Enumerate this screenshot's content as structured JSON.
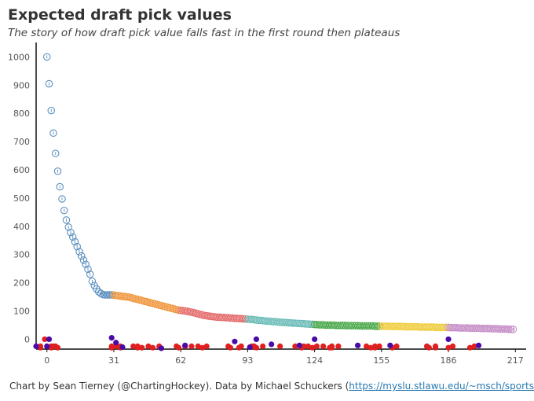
{
  "title": "Expected draft pick values",
  "subtitle": "The story of how draft pick value falls fast in the first round then plateaus",
  "caption": {
    "text": "Chart by Sean Tierney (@ChartingHockey). Data by Michael Schuckers (",
    "link": "https://myslu.stlawu.edu/~msch/sports/Sc.."
  },
  "colors": {
    "round1": "#5b8fbf",
    "round2": "#f0953a",
    "round3": "#e46a6a",
    "round4": "#6bbcb8",
    "round5": "#4aa84a",
    "round6": "#f0cc3c",
    "round7": "#c58ec7",
    "dot_red": "#e02020",
    "dot_purple": "#4a0aa8"
  },
  "chart_data": {
    "type": "scatter",
    "xlim": [
      -5,
      222
    ],
    "ylim": [
      -35,
      1040
    ],
    "x_ticks": [
      0,
      31,
      62,
      93,
      124,
      155,
      186,
      217
    ],
    "y_ticks": [
      0,
      100,
      200,
      300,
      400,
      500,
      600,
      700,
      800,
      900,
      1000
    ],
    "xlabel": "",
    "ylabel": "",
    "grid": false,
    "legend": "none",
    "series": [
      {
        "color_key": "round1",
        "x": [
          0,
          1,
          2,
          3,
          4,
          5,
          6,
          7,
          8,
          9,
          10,
          11,
          12,
          13,
          14,
          15,
          16,
          17,
          18,
          19,
          20,
          21,
          22,
          23,
          24,
          25,
          26,
          27,
          28,
          29,
          30
        ],
        "y": [
          1000,
          905,
          810,
          730,
          658,
          595,
          540,
          497,
          456,
          422,
          397,
          378,
          362,
          345,
          328,
          310,
          295,
          280,
          265,
          248,
          230,
          205,
          190,
          178,
          168,
          162,
          158,
          157,
          157,
          157,
          157
        ]
      },
      {
        "color_key": "round2",
        "x": [
          31,
          32,
          33,
          34,
          35,
          36,
          37,
          38,
          39,
          40,
          41,
          42,
          43,
          44,
          45,
          46,
          47,
          48,
          49,
          50,
          51,
          52,
          53,
          54,
          55,
          56,
          57,
          58,
          59,
          60,
          61
        ],
        "y": [
          156,
          155,
          154,
          153,
          152,
          151,
          150,
          149,
          147,
          145,
          143,
          141,
          139,
          137,
          135,
          133,
          131,
          129,
          127,
          125,
          123,
          121,
          119,
          117,
          115,
          113,
          111,
          109,
          107,
          105,
          103
        ]
      },
      {
        "color_key": "round3",
        "x": [
          62,
          63,
          64,
          65,
          66,
          67,
          68,
          69,
          70,
          71,
          72,
          73,
          74,
          75,
          76,
          77,
          78,
          79,
          80,
          81,
          82,
          83,
          84,
          85,
          86,
          87,
          88,
          89,
          90,
          91,
          92
        ],
        "y": [
          102,
          101,
          100,
          99,
          97,
          96,
          94,
          92,
          90,
          88,
          86,
          84,
          83,
          82,
          81,
          80,
          79,
          78,
          78,
          77,
          77,
          76,
          76,
          75,
          75,
          74,
          74,
          73,
          73,
          72,
          72
        ]
      },
      {
        "color_key": "round4",
        "x": [
          93,
          94,
          95,
          96,
          97,
          98,
          99,
          100,
          101,
          102,
          103,
          104,
          105,
          106,
          107,
          108,
          109,
          110,
          111,
          112,
          113,
          114,
          115,
          116,
          117,
          118,
          119,
          120,
          121,
          122,
          123
        ],
        "y": [
          71,
          70,
          70,
          69,
          68,
          67,
          67,
          66,
          65,
          64,
          64,
          63,
          62,
          62,
          61,
          60,
          60,
          59,
          59,
          58,
          58,
          57,
          57,
          56,
          56,
          55,
          55,
          54,
          54,
          53,
          53
        ]
      },
      {
        "color_key": "round5",
        "x": [
          124,
          125,
          126,
          127,
          128,
          129,
          130,
          131,
          132,
          133,
          134,
          135,
          136,
          137,
          138,
          139,
          140,
          141,
          142,
          143,
          144,
          145,
          146,
          147,
          148,
          149,
          150,
          151,
          152,
          153,
          154
        ],
        "y": [
          52,
          52,
          51,
          51,
          51,
          50,
          50,
          50,
          50,
          50,
          49,
          49,
          49,
          49,
          49,
          48,
          48,
          48,
          48,
          48,
          48,
          47,
          47,
          47,
          47,
          47,
          47,
          47,
          46,
          46,
          46
        ]
      },
      {
        "color_key": "round6",
        "x": [
          155,
          156,
          157,
          158,
          159,
          160,
          161,
          162,
          163,
          164,
          165,
          166,
          167,
          168,
          169,
          170,
          171,
          172,
          173,
          174,
          175,
          176,
          177,
          178,
          179,
          180,
          181,
          182,
          183,
          184,
          185
        ],
        "y": [
          46,
          46,
          46,
          46,
          45,
          45,
          45,
          45,
          45,
          45,
          45,
          44,
          44,
          44,
          44,
          44,
          44,
          44,
          43,
          43,
          43,
          43,
          43,
          43,
          43,
          42,
          42,
          42,
          42,
          42,
          42
        ]
      },
      {
        "color_key": "round7",
        "x": [
          186,
          187,
          188,
          189,
          190,
          191,
          192,
          193,
          194,
          195,
          196,
          197,
          198,
          199,
          200,
          201,
          202,
          203,
          204,
          205,
          206,
          207,
          208,
          209,
          210,
          211,
          212,
          213,
          214,
          215,
          216
        ],
        "y": [
          42,
          41,
          41,
          41,
          41,
          40,
          40,
          40,
          40,
          40,
          39,
          39,
          39,
          39,
          39,
          38,
          38,
          38,
          38,
          38,
          37,
          37,
          37,
          37,
          36,
          36,
          36,
          36,
          35,
          35,
          35
        ]
      },
      {
        "color_key": "dot_red",
        "x": [
          -3,
          2,
          5,
          30,
          34,
          42,
          44,
          49,
          61,
          72,
          85,
          89,
          97,
          118,
          123,
          131,
          132,
          150,
          152,
          160,
          177,
          180,
          186,
          196
        ],
        "y": [
          -30,
          -30,
          -30,
          -30,
          -30,
          -30,
          -30,
          -30,
          -30,
          -30,
          -30,
          -30,
          -30,
          -30,
          -30,
          -30,
          -30,
          -30,
          -30,
          -30,
          -30,
          -30,
          -30,
          -30
        ]
      },
      {
        "color_key": "dot_red",
        "x": [
          -3,
          -1,
          2,
          3,
          4,
          30,
          32,
          34,
          40,
          42,
          47,
          52,
          60,
          64,
          67,
          70,
          74,
          84,
          90,
          95,
          96,
          100,
          108,
          115,
          119,
          121,
          125,
          128,
          132,
          135,
          148,
          152,
          154,
          162,
          176,
          180,
          188,
          198
        ],
        "y": [
          -25,
          0,
          -25,
          -25,
          -25,
          -25,
          -25,
          -25,
          -25,
          -25,
          -25,
          -25,
          -25,
          -25,
          -25,
          -25,
          -25,
          -25,
          -25,
          -25,
          -25,
          -25,
          -25,
          -25,
          -25,
          -25,
          -25,
          -25,
          -25,
          -25,
          -25,
          -25,
          -25,
          -25,
          -25,
          -25,
          -25,
          -25
        ]
      },
      {
        "color_key": "dot_purple",
        "x": [
          -5,
          0,
          1,
          30,
          32,
          35,
          53,
          64,
          87,
          94,
          97,
          104,
          117,
          124,
          144,
          159,
          186,
          200
        ],
        "y": [
          -25,
          -25,
          0,
          5,
          -12,
          -28,
          -32,
          -22,
          -8,
          -28,
          0,
          -18,
          -22,
          0,
          -22,
          -22,
          0,
          -22
        ]
      }
    ]
  }
}
